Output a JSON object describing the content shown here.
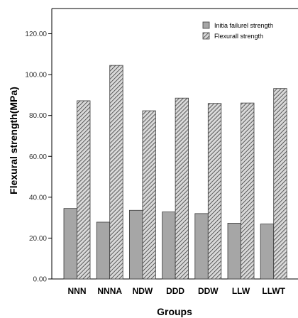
{
  "chart_data": {
    "type": "bar",
    "title": "",
    "xlabel": "Groups",
    "ylabel": "Flexural strength(MPa)",
    "categories": [
      "NNN",
      "NNNA",
      "NDW",
      "DDD",
      "DDW",
      "LLW",
      "LLWT"
    ],
    "series": [
      {
        "name": "Initia failurel strength",
        "values": [
          34.5,
          27.8,
          33.6,
          32.8,
          32.0,
          27.3,
          26.9
        ],
        "color": "#a6a6a6",
        "pattern": "solid"
      },
      {
        "name": "Flexurall strength",
        "values": [
          87.2,
          104.5,
          82.3,
          88.5,
          85.9,
          86.1,
          93.2
        ],
        "color": "#a6a6a6",
        "pattern": "hatched"
      }
    ],
    "ylim": [
      0,
      130
    ],
    "yticks": [
      "0.00",
      "20.00",
      "40.00",
      "60.00",
      "80.00",
      "100.00",
      "120.00"
    ],
    "grid": false,
    "legend_position": "top-right"
  },
  "colors": {
    "bar_fill": "#a6a6a6",
    "bar_stroke": "#3a3a3a",
    "axis": "#000000"
  }
}
